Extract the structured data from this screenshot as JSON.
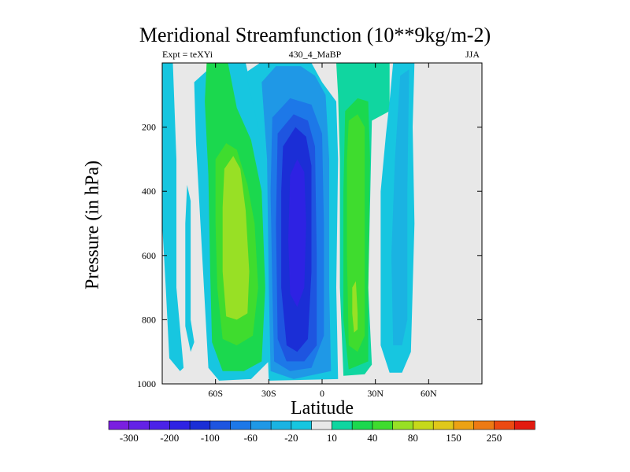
{
  "chart_data": {
    "type": "heatmap",
    "title": "Meridional Streamfunction (10**9kg/m-2)",
    "subtitle_left": "Expt = teXYi",
    "subtitle_center": "430_4_MaBP",
    "subtitle_right": "JJA",
    "xlabel": "Latitude",
    "ylabel": "Pressure (in hPa)",
    "x_range": [
      -90,
      90
    ],
    "y_range": [
      1000,
      0
    ],
    "y_scale": "linear, reversed",
    "x_ticks": [
      {
        "value": -60,
        "label": "60S"
      },
      {
        "value": -30,
        "label": "30S"
      },
      {
        "value": 0,
        "label": "0"
      },
      {
        "value": 30,
        "label": "30N"
      },
      {
        "value": 60,
        "label": "60N"
      }
    ],
    "y_ticks": [
      {
        "value": 200,
        "label": "200"
      },
      {
        "value": 400,
        "label": "400"
      },
      {
        "value": 600,
        "label": "600"
      },
      {
        "value": 800,
        "label": "800"
      },
      {
        "value": 1000,
        "label": "1000"
      }
    ],
    "colorbar": {
      "levels": [
        -300,
        -250,
        -200,
        -150,
        -100,
        -80,
        -60,
        -40,
        -20,
        -10,
        10,
        20,
        40,
        60,
        80,
        100,
        150,
        200,
        250,
        300
      ],
      "labels": [
        "-300",
        "-200",
        "-100",
        "-60",
        "-20",
        "10",
        "40",
        "80",
        "150",
        "250"
      ],
      "colors": [
        "#7a1fe0",
        "#6322e6",
        "#4b22e8",
        "#2e22e3",
        "#1b2ed6",
        "#1e55e0",
        "#1d78e8",
        "#1f98e6",
        "#1ab3e2",
        "#17c6e0",
        "#e8e8e8",
        "#10d6a0",
        "#1bd84e",
        "#3fdc2e",
        "#98e025",
        "#c6d91a",
        "#e0c81a",
        "#eca214",
        "#ed7a14",
        "#ec4a12",
        "#e21a10"
      ]
    },
    "cells": [
      {
        "band": "0-10S to 35S core",
        "value": -200
      },
      {
        "band": "15N-30N",
        "value": 80
      },
      {
        "band": "45S-65S",
        "value": 60
      },
      {
        "band": "40N-55N",
        "value": -20
      },
      {
        "band": "75S-85S",
        "value": -20
      }
    ]
  }
}
